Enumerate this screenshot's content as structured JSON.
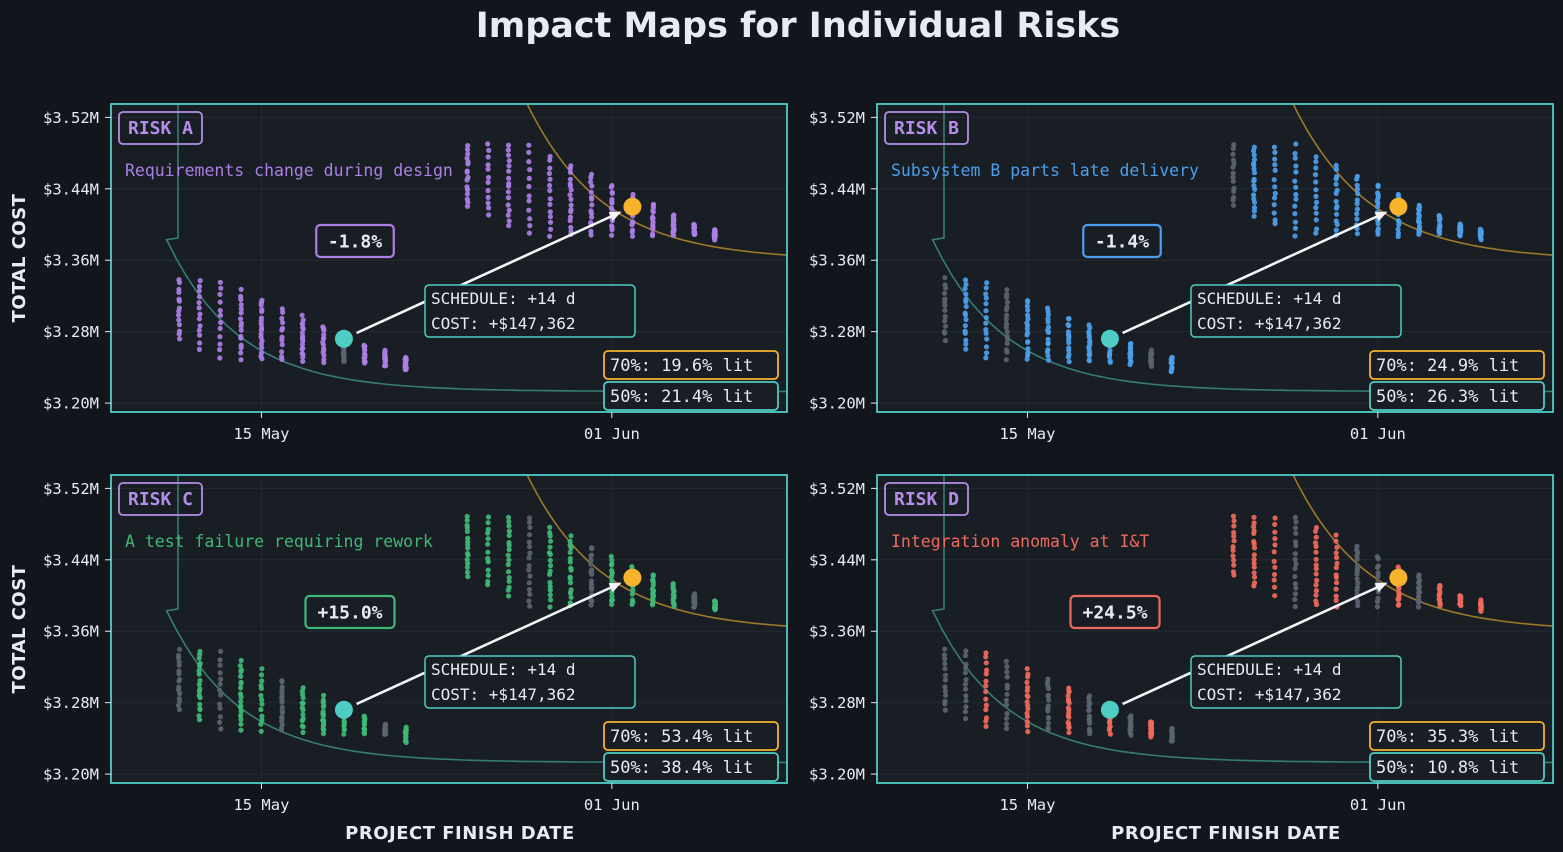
{
  "title": "Impact Maps for Individual Risks",
  "colors": {
    "background": "#12161c",
    "panel": "#191e24",
    "frame": "#4ecdc4",
    "grid": "#232a31",
    "text": "#e6ebf5",
    "baseline_marker": "#4ecdc4",
    "shifted_marker": "#f6b32b",
    "gold_curve": "#b58a2c",
    "teal_curve": "#3c8d84",
    "p70_box": "#f6b32b",
    "p50_box": "#4ecdc4",
    "risk_tag": "#b48ee8",
    "arrow": "#f2f4f8",
    "ghost_dots": "#5a6470"
  },
  "chart_data": [
    {
      "type": "scatter",
      "risk_label": "RISK A",
      "description": "Requirements change during design",
      "color": "#ab7fe6",
      "delta_label": "-1.8%",
      "schedule_text": "SCHEDULE:  +14 d",
      "cost_text": "COST:      +$147,362",
      "p70_text": "70%:  19.6% lit",
      "p50_text": "50%:  21.4% lit",
      "xlabel": "",
      "ylabel": "TOTAL COST",
      "x_ticks": [
        "15 May",
        "01 Jun"
      ],
      "y_ticks": [
        "$3.20M",
        "$3.28M",
        "$3.36M",
        "$3.44M",
        "$3.52M"
      ],
      "ylim": [
        3.19,
        3.535
      ],
      "baseline": {
        "date": "2024-05-19",
        "cost": 3.272
      },
      "shifted": {
        "date": "2024-06-02",
        "cost": 3.42
      }
    },
    {
      "type": "scatter",
      "risk_label": "RISK B",
      "description": "Subsystem B parts late delivery",
      "color": "#4b9fec",
      "delta_label": "-1.4%",
      "schedule_text": "SCHEDULE:  +14 d",
      "cost_text": "COST:      +$147,362",
      "p70_text": "70%:  24.9% lit",
      "p50_text": "50%:  26.3% lit",
      "xlabel": "",
      "ylabel": "",
      "x_ticks": [
        "15 May",
        "01 Jun"
      ],
      "y_ticks": [
        "$3.20M",
        "$3.28M",
        "$3.36M",
        "$3.44M",
        "$3.52M"
      ],
      "ylim": [
        3.19,
        3.535
      ],
      "baseline": {
        "date": "2024-05-19",
        "cost": 3.272
      },
      "shifted": {
        "date": "2024-06-02",
        "cost": 3.42
      }
    },
    {
      "type": "scatter",
      "risk_label": "RISK C",
      "description": "A test failure requiring rework",
      "color": "#3fb877",
      "delta_label": "+15.0%",
      "schedule_text": "SCHEDULE:  +14 d",
      "cost_text": "COST:      +$147,362",
      "p70_text": "70%:  53.4% lit",
      "p50_text": "50%:  38.4% lit",
      "xlabel": "PROJECT FINISH DATE",
      "ylabel": "TOTAL COST",
      "x_ticks": [
        "15 May",
        "01 Jun"
      ],
      "y_ticks": [
        "$3.20M",
        "$3.28M",
        "$3.36M",
        "$3.44M",
        "$3.52M"
      ],
      "ylim": [
        3.19,
        3.535
      ],
      "baseline": {
        "date": "2024-05-19",
        "cost": 3.272
      },
      "shifted": {
        "date": "2024-06-02",
        "cost": 3.42
      }
    },
    {
      "type": "scatter",
      "risk_label": "RISK D",
      "description": "Integration anomaly at I&T",
      "color": "#ee6a5c",
      "delta_label": "+24.5%",
      "schedule_text": "SCHEDULE:  +14 d",
      "cost_text": "COST:      +$147,362",
      "p70_text": "70%:  35.3% lit",
      "p50_text": "50%:  10.8% lit",
      "xlabel": "PROJECT FINISH DATE",
      "ylabel": "",
      "x_ticks": [
        "15 May",
        "01 Jun"
      ],
      "y_ticks": [
        "$3.20M",
        "$3.28M",
        "$3.36M",
        "$3.44M",
        "$3.52M"
      ],
      "ylim": [
        3.19,
        3.535
      ],
      "baseline": {
        "date": "2024-05-19",
        "cost": 3.272
      },
      "shifted": {
        "date": "2024-06-02",
        "cost": 3.42
      }
    }
  ]
}
